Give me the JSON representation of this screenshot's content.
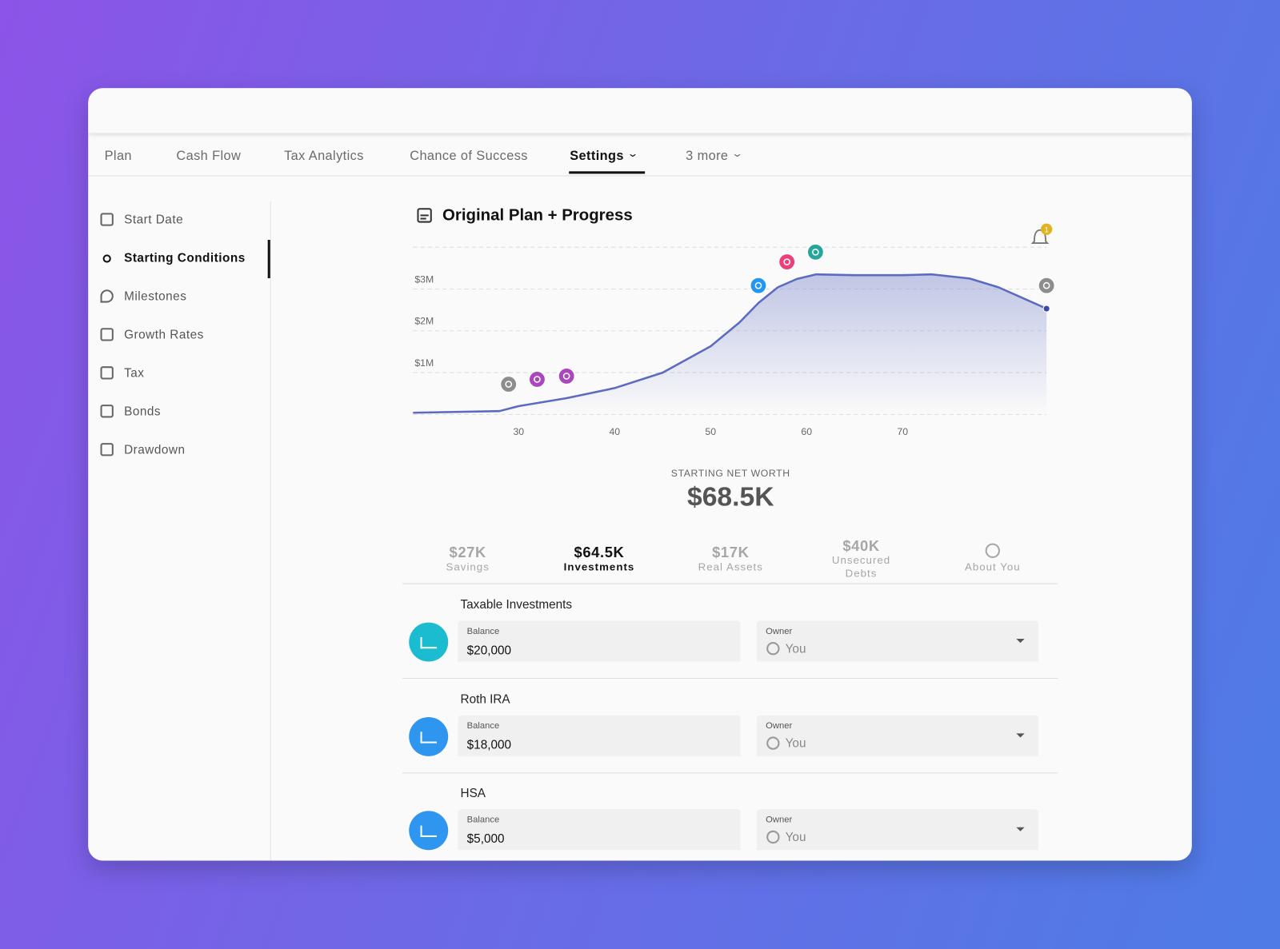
{
  "header": {
    "title": "Original Plan + Progress"
  },
  "tabs": [
    {
      "label": "Plan"
    },
    {
      "label": "Cash Flow"
    },
    {
      "label": "Tax Analytics"
    },
    {
      "label": "Chance of Success"
    },
    {
      "label": "Settings",
      "active": true,
      "menu": true
    },
    {
      "label": "3 more",
      "menu": true
    }
  ],
  "sidebar": [
    {
      "label": "Start Date"
    },
    {
      "label": "Starting Conditions",
      "active": true
    },
    {
      "label": "Milestones"
    },
    {
      "label": "Growth Rates"
    },
    {
      "label": "Tax"
    },
    {
      "label": "Bonds"
    },
    {
      "label": "Drawdown"
    }
  ],
  "chart": {
    "type": "area",
    "title": "Original Plan + Progress",
    "badge": "1",
    "color": "#5c6bc0",
    "x": [
      19,
      28,
      30,
      35,
      40,
      45,
      50,
      53,
      55,
      57,
      59,
      61,
      65,
      70,
      73,
      77,
      80,
      85
    ],
    "values": [
      40000,
      80000,
      200000,
      390000,
      630000,
      1000000,
      1630000,
      2200000,
      2670000,
      3040000,
      3240000,
      3350000,
      3330000,
      3330000,
      3350000,
      3250000,
      3040000,
      2530000
    ],
    "xlim": [
      19,
      85
    ],
    "xticks": [
      30,
      40,
      50,
      60,
      70
    ],
    "ylim": [
      0,
      4000000
    ],
    "yticks": [
      {
        "value": 1000000,
        "label": "$1M"
      },
      {
        "value": 2000000,
        "label": "$2M"
      },
      {
        "value": 3000000,
        "label": "$3M"
      }
    ],
    "grid": true
  },
  "summary": {
    "label": "STARTING NET WORTH",
    "value": "$68.5K"
  },
  "categories": [
    {
      "value": "$27K",
      "label": "Savings"
    },
    {
      "value": "$64.5K",
      "label": "Investments",
      "active": true
    },
    {
      "value": "$17K",
      "label": "Real Assets"
    },
    {
      "value": "$40K",
      "label": "Unsecured Debts"
    },
    {
      "label": "About You"
    }
  ],
  "fields": {
    "balance": "Balance",
    "owner": "Owner"
  },
  "accounts": [
    {
      "name": "Taxable Investments",
      "balance": "$20,000",
      "owner": "You",
      "color": "#1bbccf"
    },
    {
      "name": "Roth IRA",
      "balance": "$18,000",
      "owner": "You",
      "color": "#2e96ef"
    },
    {
      "name": "HSA",
      "balance": "$5,000",
      "owner": "You",
      "color": "#2e96ef"
    }
  ]
}
